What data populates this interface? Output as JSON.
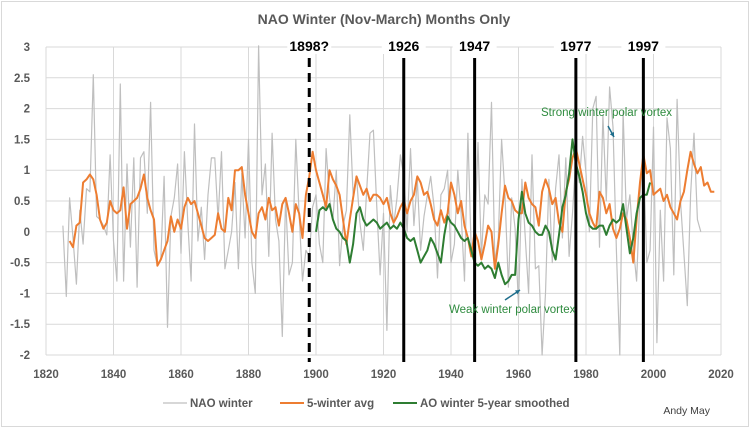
{
  "chart_data": {
    "type": "line",
    "title": "NAO Winter (Nov-March) Months Only",
    "xlabel": "",
    "ylabel": "",
    "xlim": [
      1820,
      2020
    ],
    "ylim": [
      -2,
      3
    ],
    "x_ticks": [
      "1820",
      "1840",
      "1860",
      "1880",
      "1900",
      "1920",
      "1940",
      "1960",
      "1980",
      "2000",
      "2020"
    ],
    "y_ticks": [
      "3",
      "2.5",
      "2",
      "1.5",
      "1",
      "0.5",
      "0",
      "-0.5",
      "-1",
      "-1.5",
      "-2"
    ],
    "grid": true,
    "legend_position": "bottom",
    "series": [
      {
        "name": "NAO winter",
        "color": "#bfbfbf",
        "x_start": 1825,
        "values": [
          0.1,
          -1.05,
          0.55,
          -0.1,
          -0.85,
          0.35,
          -0.2,
          0.7,
          0.65,
          2.55,
          0.25,
          0.2,
          0.1,
          -0.05,
          1.25,
          -0.15,
          -0.8,
          2.4,
          -0.8,
          1.1,
          -0.25,
          1.2,
          -0.9,
          1.2,
          1.3,
          0.3,
          2.1,
          -0.3,
          -0.55,
          -0.45,
          0.9,
          -1.55,
          0.25,
          0.55,
          1.1,
          -0.35,
          1.3,
          0.15,
          -0.8,
          1.75,
          -0.15,
          0.4,
          -0.45,
          0.6,
          1.2,
          1.2,
          0.2,
          1.3,
          -0.6,
          -0.3,
          0.0,
          0.8,
          -0.6,
          0.95,
          -0.1,
          1.5,
          -0.5,
          -1.0,
          3.5,
          0.6,
          1.1,
          -0.4,
          1.6,
          0.2,
          -0.15,
          -1.7,
          0.55,
          -0.7,
          -0.5,
          1.5,
          0.3,
          -0.8,
          -0.3,
          -0.4,
          0.4,
          0.6,
          -0.2,
          -0.5,
          1.35,
          0.55,
          0.2,
          1.0,
          -0.55,
          0.1,
          0.35,
          1.9,
          0.6,
          0.9,
          0.15,
          -0.3,
          0.65,
          1.6,
          1.65,
          0.4,
          -0.7,
          0.3,
          -1.6,
          0.75,
          0.1,
          0.55,
          1.25,
          0.9,
          0.0,
          1.35,
          0.1,
          0.85,
          -0.3,
          0.25,
          0.6,
          0.9,
          0.4,
          -0.75,
          0.6,
          0.7,
          1.0,
          -0.5,
          -0.2,
          1.0,
          0.3,
          -0.8,
          1.6,
          -0.35,
          -0.1,
          1.45,
          -0.4,
          0.6,
          0.45,
          2.1,
          -0.5,
          -0.1,
          1.5,
          0.6,
          -0.9,
          0.55,
          0.05,
          -1.2,
          0.85,
          -0.1,
          -1.0,
          1.25,
          -0.6,
          -0.55,
          -2.0,
          -1.0,
          0.85,
          -0.5,
          0.7,
          1.25,
          -0.1,
          1.2,
          -0.4,
          0.3,
          1.2,
          0.8,
          1.55,
          0.95,
          0.0,
          2.0,
          2.2,
          -0.25,
          1.9,
          0.5,
          2.35,
          1.7,
          -0.3,
          -2.0,
          1.95,
          0.2,
          0.6,
          -0.25,
          -0.8,
          0.6,
          1.25,
          -0.5,
          -0.3,
          1.7,
          -1.8,
          0.35,
          -0.8,
          1.85,
          1.35,
          -0.7,
          2.15,
          0.5,
          -0.35,
          -1.2,
          0.6,
          1.6,
          0.2,
          0.0
        ]
      },
      {
        "name": "5-winter avg",
        "color": "#ed7d31",
        "x_start": 1827,
        "values": [
          -0.15,
          -0.25,
          0.1,
          0.15,
          0.8,
          0.85,
          0.93,
          0.85,
          0.6,
          0.2,
          0.05,
          0.15,
          0.5,
          0.35,
          0.3,
          0.35,
          0.72,
          0.05,
          0.45,
          0.5,
          0.55,
          0.7,
          0.93,
          0.55,
          0.35,
          0.2,
          -0.55,
          -0.45,
          -0.3,
          -0.15,
          0.25,
          0.0,
          0.2,
          0.05,
          0.4,
          0.55,
          0.45,
          0.5,
          0.3,
          0.1,
          -0.1,
          -0.15,
          -0.1,
          -0.05,
          0.3,
          0.05,
          0.0,
          0.55,
          0.35,
          1.0,
          1.0,
          1.05,
          0.6,
          0.3,
          0.0,
          -0.1,
          0.3,
          0.4,
          0.2,
          0.55,
          0.35,
          0.4,
          0.1,
          0.45,
          0.55,
          0.3,
          0.0,
          0.45,
          0.3,
          -0.1,
          0.6,
          0.9,
          1.3,
          1.0,
          0.8,
          0.6,
          0.4,
          1.0,
          0.85,
          0.75,
          0.6,
          0.2,
          -0.2,
          0.2,
          0.55,
          0.9,
          0.75,
          0.6,
          0.7,
          0.5,
          0.6,
          0.6,
          0.55,
          0.45,
          0.55,
          0.3,
          0.15,
          0.25,
          0.4,
          0.5,
          0.3,
          0.5,
          0.6,
          0.9,
          0.8,
          0.6,
          0.65,
          0.45,
          0.2,
          0.1,
          0.35,
          0.15,
          0.3,
          0.8,
          0.6,
          0.3,
          0.5,
          0.1,
          -0.1,
          -0.4,
          0.0,
          -0.15,
          -0.45,
          -0.2,
          0.1,
          0.0,
          -0.6,
          -0.2,
          0.3,
          0.75,
          0.55,
          0.5,
          0.35,
          0.3,
          0.3,
          0.8,
          0.55,
          0.45,
          0.4,
          0.1,
          0.65,
          0.85,
          0.7,
          0.45,
          0.55,
          0.15,
          0.0,
          0.65,
          0.85,
          1.2,
          1.35,
          1.1,
          0.85,
          0.6,
          0.3,
          0.15,
          0.05,
          0.65,
          0.55,
          0.3,
          0.45,
          0.05,
          -0.1,
          0.05,
          0.3,
          0.2,
          -0.1,
          -0.5,
          0.2,
          0.8,
          1.25,
          0.95,
          1.0,
          0.6,
          0.65,
          0.7,
          0.5,
          0.6,
          0.4,
          0.3,
          0.2,
          0.5,
          0.65,
          1.0,
          1.3,
          1.1,
          0.95,
          1.05,
          0.75,
          0.8,
          0.65,
          0.65
        ]
      },
      {
        "name": "AO winter 5-year smoothed",
        "color": "#2e7d32",
        "x_start": 1900,
        "values": [
          0.0,
          0.35,
          0.4,
          0.35,
          0.45,
          0.2,
          0.05,
          0.0,
          -0.1,
          -0.15,
          -0.5,
          -0.2,
          0.3,
          0.4,
          0.2,
          0.1,
          0.15,
          0.2,
          0.15,
          0.05,
          0.1,
          0.15,
          0.05,
          0.1,
          0.05,
          0.15,
          0.05,
          -0.1,
          -0.15,
          -0.1,
          -0.3,
          -0.5,
          -0.4,
          -0.3,
          -0.1,
          -0.2,
          -0.35,
          -0.5,
          -0.05,
          0.25,
          0.15,
          0.1,
          0.0,
          -0.1,
          -0.15,
          -0.1,
          -0.3,
          -0.5,
          -0.55,
          -0.5,
          -0.6,
          -0.55,
          -0.6,
          -0.75,
          -0.5,
          -0.7,
          -0.85,
          -0.8,
          -0.7,
          -0.7,
          0.2,
          0.65,
          0.3,
          0.15,
          0.1,
          0.0,
          -0.05,
          -0.05,
          0.1,
          0.0,
          -0.3,
          -0.45,
          -0.05,
          0.4,
          0.6,
          0.95,
          1.5,
          1.1,
          0.9,
          0.65,
          0.3,
          0.1,
          0.05,
          0.05,
          0.1,
          0.1,
          -0.05,
          0.1,
          0.2,
          0.15,
          0.2,
          0.45,
          0.05,
          -0.35,
          -0.1,
          0.3,
          0.55,
          0.6,
          0.6,
          0.8
        ]
      }
    ],
    "vertical_markers": [
      {
        "year": 1898,
        "label": "1898?",
        "style": "dashed"
      },
      {
        "year": 1926,
        "label": "1926",
        "style": "solid"
      },
      {
        "year": 1947,
        "label": "1947",
        "style": "solid"
      },
      {
        "year": 1977,
        "label": "1977",
        "style": "solid"
      },
      {
        "year": 1997,
        "label": "1997",
        "style": "solid"
      }
    ],
    "annotations": [
      {
        "text": "Strong winter polar vortex",
        "arrow_target_year": 1990,
        "arrow_target_value": 1.5
      },
      {
        "text": "Weak winter polar vortex",
        "arrow_target_year": 1963,
        "arrow_target_value": -0.8
      }
    ],
    "author": "Andy May"
  }
}
